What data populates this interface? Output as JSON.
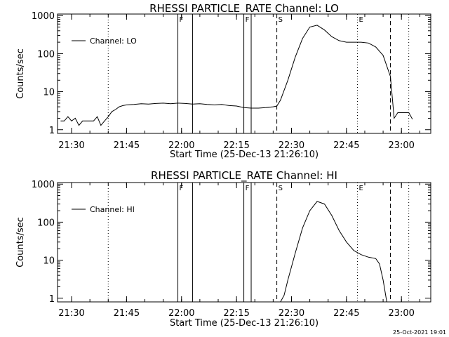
{
  "footer_stamp": "25-Oct-2021 19:01",
  "chart_data": [
    {
      "type": "line",
      "title": "RHESSI PARTICLE_RATE Channel: LO",
      "xlabel": "Start Time (25-Dec-13 21:26:10)",
      "ylabel": "Counts/sec",
      "y_scale": "log",
      "xlim": [
        "21:26:10",
        "23:08"
      ],
      "ylim": [
        0.8,
        1100
      ],
      "x_ticks": [
        "21:30",
        "21:45",
        "22:00",
        "22:15",
        "22:30",
        "22:45",
        "23:00"
      ],
      "y_ticks": [
        "1",
        "10",
        "100",
        "1000"
      ],
      "legend": {
        "placement": "top-left",
        "label": "Channel: LO"
      },
      "markers": [
        {
          "label": "F",
          "time": "21:59",
          "style": "solid"
        },
        {
          "label": "",
          "time": "22:03",
          "style": "solid"
        },
        {
          "label": "F",
          "time": "22:17",
          "style": "solid"
        },
        {
          "label": "",
          "time": "22:19",
          "style": "solid"
        },
        {
          "label": "S",
          "time": "22:26",
          "style": "dashed"
        },
        {
          "label": "E",
          "time": "22:48",
          "style": "dotted"
        },
        {
          "label": "",
          "time": "22:57",
          "style": "dashed"
        },
        {
          "label": "",
          "time": "23:02",
          "style": "dotted"
        },
        {
          "label": "",
          "time": "21:40",
          "style": "dotted"
        }
      ],
      "series": [
        {
          "name": "Channel: LO",
          "x": [
            "21:27",
            "21:28",
            "21:29",
            "21:30",
            "21:31",
            "21:32",
            "21:33",
            "21:34",
            "21:35",
            "21:36",
            "21:37",
            "21:38",
            "21:39",
            "21:40",
            "21:41",
            "21:42",
            "21:43",
            "21:44",
            "21:45",
            "21:47",
            "21:49",
            "21:51",
            "21:53",
            "21:55",
            "21:57",
            "21:59",
            "22:01",
            "22:03",
            "22:05",
            "22:07",
            "22:09",
            "22:11",
            "22:13",
            "22:15",
            "22:17",
            "22:19",
            "22:21",
            "22:23",
            "22:25",
            "22:26",
            "22:27",
            "22:29",
            "22:31",
            "22:33",
            "22:35",
            "22:37",
            "22:39",
            "22:41",
            "22:43",
            "22:45",
            "22:47",
            "22:49",
            "22:51",
            "22:53",
            "22:55",
            "22:57",
            "22:58",
            "22:59",
            "23:00",
            "23:01",
            "23:02",
            "23:03"
          ],
          "y": [
            1.7,
            1.7,
            2.2,
            1.7,
            2.0,
            1.3,
            1.7,
            1.7,
            1.7,
            1.7,
            2.2,
            1.3,
            1.7,
            2.2,
            3.0,
            3.4,
            4.0,
            4.3,
            4.5,
            4.6,
            4.8,
            4.7,
            4.9,
            5.0,
            4.8,
            5.0,
            4.9,
            4.7,
            4.8,
            4.6,
            4.5,
            4.6,
            4.3,
            4.2,
            3.8,
            3.7,
            3.7,
            3.8,
            4.0,
            4.2,
            6.0,
            20,
            80,
            250,
            500,
            560,
            420,
            280,
            220,
            200,
            200,
            200,
            190,
            150,
            90,
            25,
            2.0,
            2.8,
            2.8,
            2.8,
            2.8,
            1.9
          ]
        }
      ]
    },
    {
      "type": "line",
      "title": "RHESSI PARTICLE_RATE Channel: HI",
      "xlabel": "Start Time (25-Dec-13 21:26:10)",
      "ylabel": "Counts/sec",
      "y_scale": "log",
      "xlim": [
        "21:26:10",
        "23:08"
      ],
      "ylim": [
        0.8,
        1100
      ],
      "x_ticks": [
        "21:30",
        "21:45",
        "22:00",
        "22:15",
        "22:30",
        "22:45",
        "23:00"
      ],
      "y_ticks": [
        "1",
        "10",
        "100",
        "1000"
      ],
      "legend": {
        "placement": "top-left",
        "label": "Channel: HI"
      },
      "markers": [
        {
          "label": "F",
          "time": "21:59",
          "style": "solid"
        },
        {
          "label": "",
          "time": "22:03",
          "style": "solid"
        },
        {
          "label": "F",
          "time": "22:17",
          "style": "solid"
        },
        {
          "label": "",
          "time": "22:19",
          "style": "solid"
        },
        {
          "label": "S",
          "time": "22:26",
          "style": "dashed"
        },
        {
          "label": "E",
          "time": "22:48",
          "style": "dotted"
        },
        {
          "label": "",
          "time": "22:57",
          "style": "dashed"
        },
        {
          "label": "",
          "time": "23:02",
          "style": "dotted"
        },
        {
          "label": "",
          "time": "21:40",
          "style": "dotted"
        }
      ],
      "series": [
        {
          "name": "Channel: HI",
          "x": [
            "22:27",
            "22:28",
            "22:29",
            "22:31",
            "22:33",
            "22:35",
            "22:37",
            "22:39",
            "22:41",
            "22:43",
            "22:45",
            "22:47",
            "22:49",
            "22:51",
            "22:53",
            "22:54",
            "22:55",
            "22:56"
          ],
          "y": [
            0.8,
            1.2,
            3,
            15,
            70,
            200,
            350,
            300,
            150,
            60,
            30,
            18,
            14,
            12,
            11,
            8,
            3,
            0.8
          ]
        }
      ]
    }
  ]
}
